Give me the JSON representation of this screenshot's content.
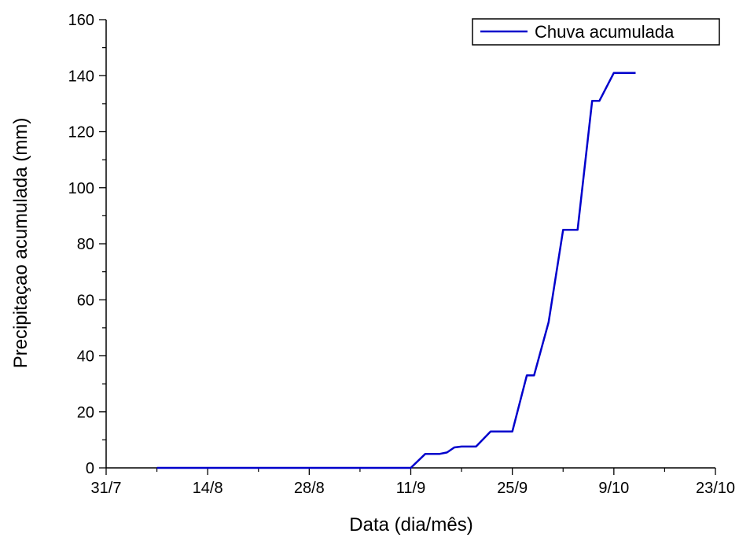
{
  "chart_data": {
    "type": "line",
    "title": "",
    "xlabel": "Data (dia/mês)",
    "ylabel": "Precipitaçao acumulada (mm)",
    "x_ticks": [
      "31/7",
      "14/8",
      "28/8",
      "11/9",
      "25/9",
      "9/10",
      "23/10"
    ],
    "xlim": [
      "31/7",
      "23/10"
    ],
    "ylim": [
      0,
      160
    ],
    "y_ticks": [
      0,
      20,
      40,
      60,
      80,
      100,
      120,
      140,
      160
    ],
    "grid": false,
    "legend": {
      "position": "top-right",
      "entries": [
        "Chuva acumulada"
      ]
    },
    "series": [
      {
        "name": "Chuva acumulada",
        "color": "#0000cc",
        "points": [
          [
            "7/8",
            0
          ],
          [
            "8/8",
            0
          ],
          [
            "10/8",
            0
          ],
          [
            "14/8",
            0
          ],
          [
            "21/8",
            0
          ],
          [
            "28/8",
            0
          ],
          [
            "4/9",
            0
          ],
          [
            "10/9",
            0
          ],
          [
            "11/9",
            0
          ],
          [
            "13/9",
            5
          ],
          [
            "15/9",
            5
          ],
          [
            "16/9",
            5.5
          ],
          [
            "17/9",
            7.3
          ],
          [
            "18/9",
            7.6
          ],
          [
            "20/9",
            7.6
          ],
          [
            "22/9",
            13
          ],
          [
            "25/9",
            13
          ],
          [
            "27/9",
            33
          ],
          [
            "28/9",
            33
          ],
          [
            "30/9",
            52
          ],
          [
            "2/10",
            85
          ],
          [
            "4/10",
            85
          ],
          [
            "6/10",
            131
          ],
          [
            "7/10",
            131
          ],
          [
            "9/10",
            141
          ],
          [
            "12/10",
            141
          ]
        ]
      }
    ]
  }
}
